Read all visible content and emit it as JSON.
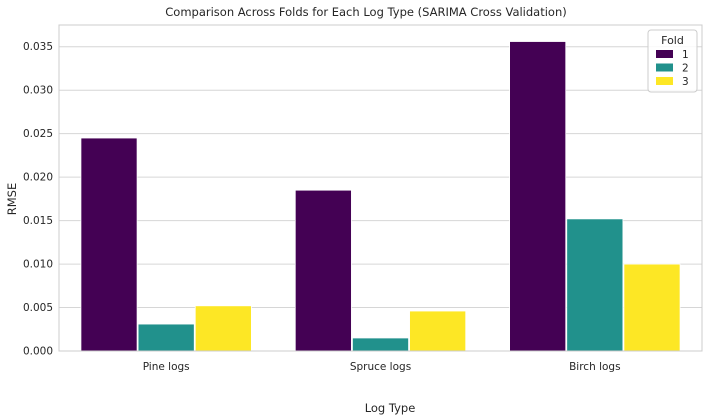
{
  "chart_data": {
    "type": "bar",
    "title": "Comparison Across Folds for Each Log Type (SARIMA Cross Validation)",
    "xlabel": "Log Type",
    "ylabel": "RMSE",
    "categories": [
      "Pine logs",
      "Spruce logs",
      "Birch logs"
    ],
    "series": [
      {
        "name": "1",
        "values": [
          0.0245,
          0.0185,
          0.0356
        ],
        "color": "#440154"
      },
      {
        "name": "2",
        "values": [
          0.0031,
          0.0015,
          0.0152
        ],
        "color": "#21918c"
      },
      {
        "name": "3",
        "values": [
          0.0052,
          0.0046,
          0.01
        ],
        "color": "#fde725"
      }
    ],
    "ylim": [
      0,
      0.0375
    ],
    "yticks": [
      "0.000",
      "0.005",
      "0.010",
      "0.015",
      "0.020",
      "0.025",
      "0.030",
      "0.035"
    ],
    "ytick_values": [
      0,
      0.005,
      0.01,
      0.015,
      0.02,
      0.025,
      0.03,
      0.035
    ],
    "grid": true,
    "legend": {
      "title": "Fold",
      "placement": "top-right"
    }
  }
}
